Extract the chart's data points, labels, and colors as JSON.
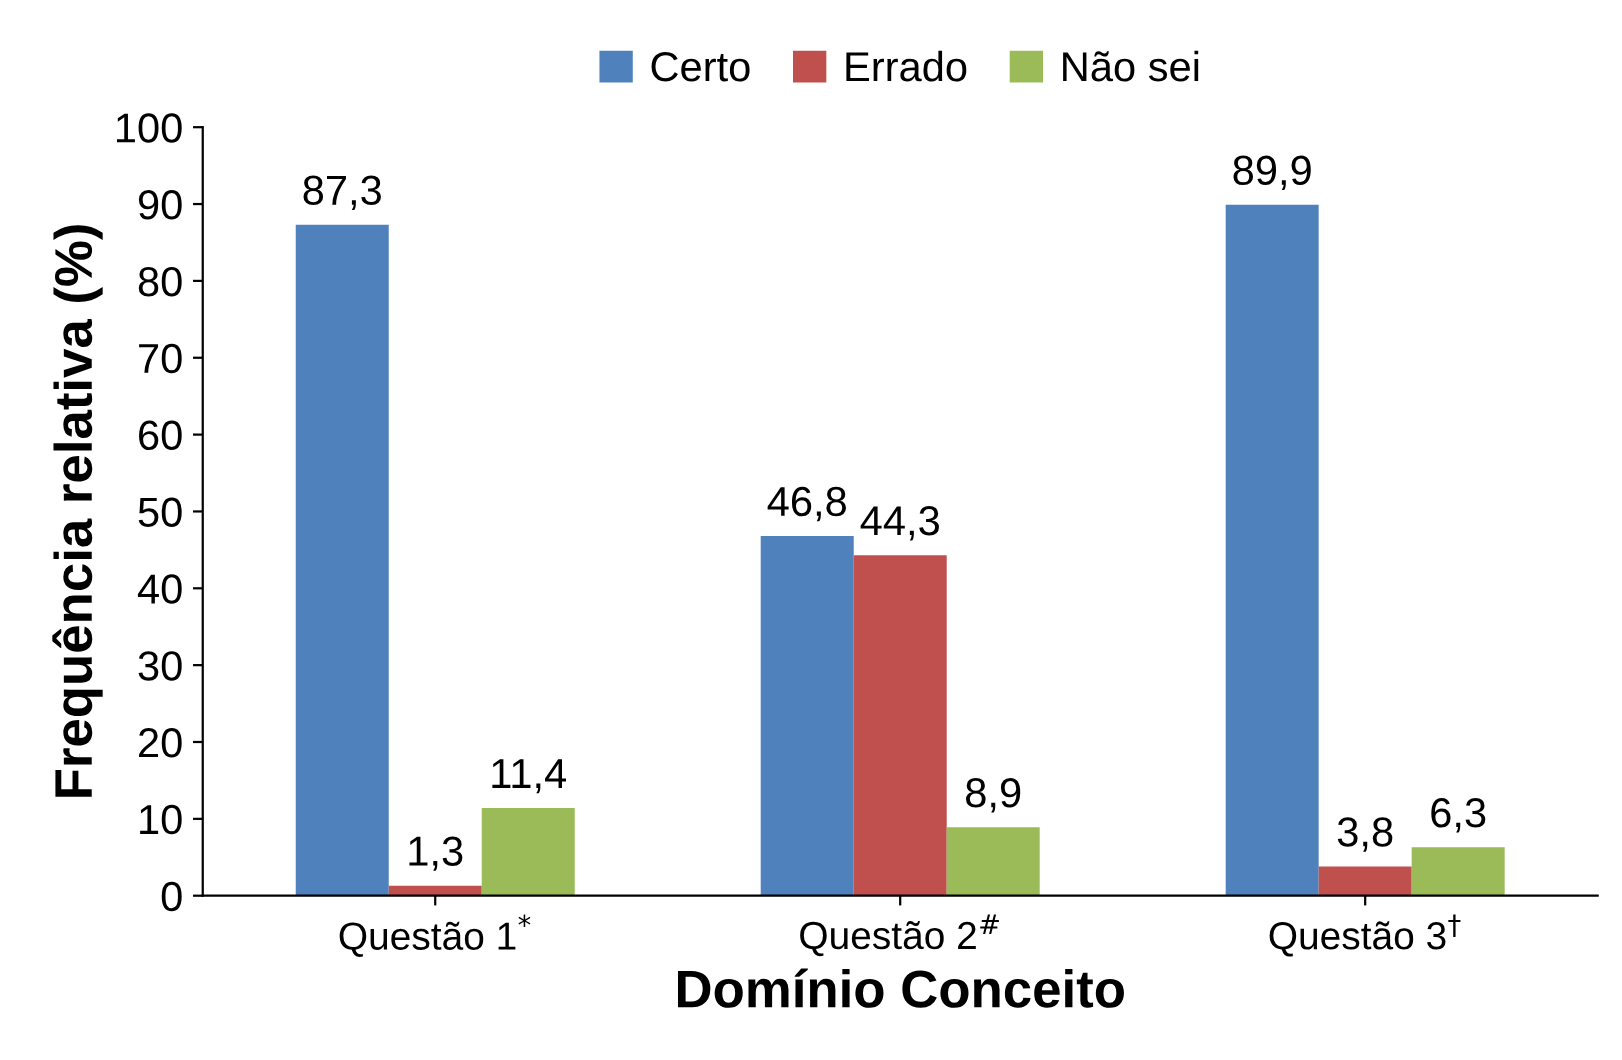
{
  "chart_data": {
    "type": "bar",
    "xlabel": "Domínio Conceito",
    "ylabel": "Frequência relativa (%)",
    "categories": [
      "Questão 1$^{*}$",
      "Questão 2$^{#}$",
      "Questão 3$^{†}$"
    ],
    "series": [
      {
        "name": "Certo",
        "color": "#4f81bd",
        "values": [
          87.3,
          46.8,
          89.9
        ],
        "value_labels": [
          "87,3",
          "46,8",
          "89,9"
        ]
      },
      {
        "name": "Errado",
        "color": "#c0504d",
        "values": [
          1.3,
          44.3,
          3.8
        ],
        "value_labels": [
          "1,3",
          "44,3",
          "3,8"
        ]
      },
      {
        "name": "Não sei",
        "color": "#9bbb59",
        "values": [
          11.4,
          8.9,
          6.3
        ],
        "value_labels": [
          "11,4",
          "8,9",
          "6,3"
        ]
      }
    ],
    "ylim": [
      0,
      100
    ],
    "yticks": [
      0,
      10,
      20,
      30,
      40,
      50,
      60,
      70,
      80,
      90,
      100
    ],
    "grid": false,
    "legend": "top"
  }
}
